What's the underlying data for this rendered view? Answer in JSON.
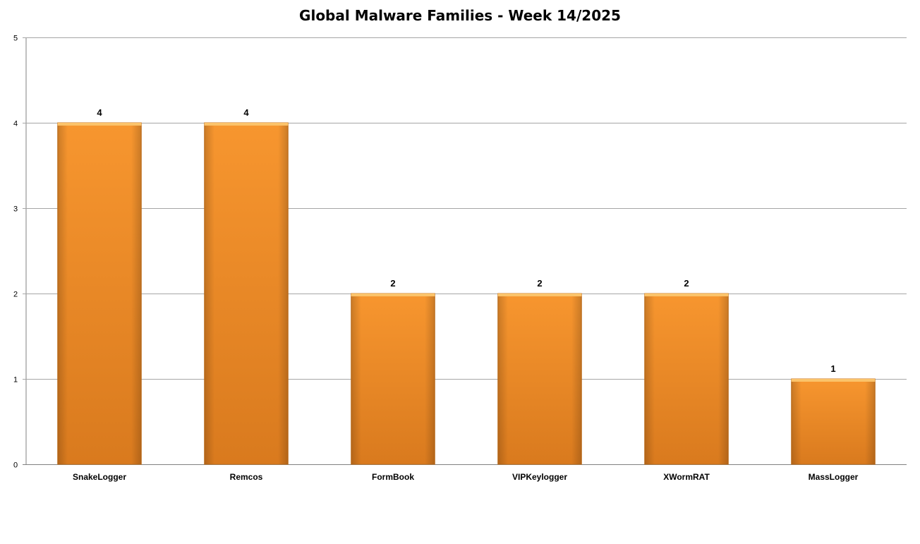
{
  "chart_data": {
    "type": "bar",
    "title": "Global Malware Families - Week 14/2025",
    "xlabel": "",
    "ylabel": "",
    "categories": [
      "SnakeLogger",
      "Remcos",
      "FormBook",
      "VIPKeylogger",
      "XWormRAT",
      "MassLogger"
    ],
    "values": [
      4,
      4,
      2,
      2,
      2,
      1
    ],
    "ylim": [
      0,
      5
    ],
    "yticks": [
      0,
      1,
      2,
      3,
      4,
      5
    ],
    "grid": true,
    "legend": "none",
    "data_labels": true,
    "bar_color": "#F7962F",
    "bar_color_dark": "#D97A1E"
  }
}
